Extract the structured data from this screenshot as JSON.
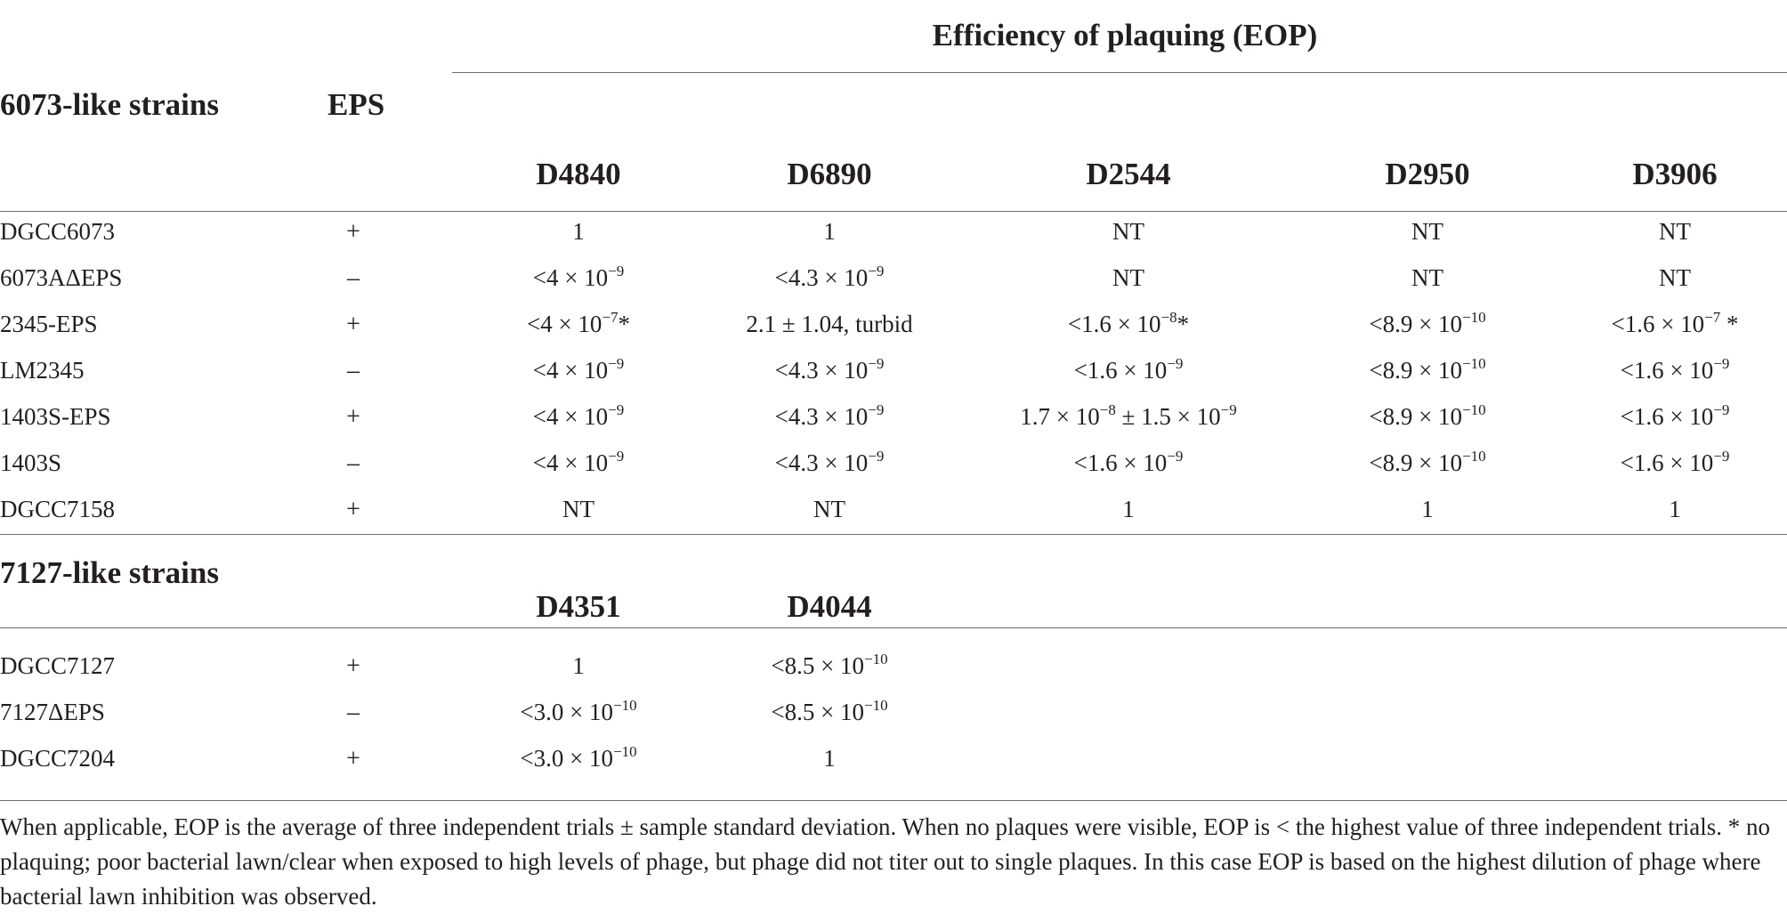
{
  "table": {
    "group_header": "Efficiency of plaquing (EOP)",
    "section_6073": {
      "label": "6073-like strains",
      "eps_header": "EPS",
      "phages": [
        "D4840",
        "D6890",
        "D2544",
        "D2950",
        "D3906"
      ],
      "rows": [
        {
          "strain": "DGCC6073",
          "eps": "+",
          "cells": [
            [
              "1",
              ""
            ],
            [
              "1",
              ""
            ],
            [
              "NT",
              ""
            ],
            [
              "NT",
              ""
            ],
            [
              "NT",
              ""
            ]
          ]
        },
        {
          "strain": "6073AΔEPS",
          "eps": "–",
          "cells": [
            [
              "<4 × 10",
              "−9",
              ""
            ],
            [
              "<4.3 × 10",
              "−9",
              ""
            ],
            [
              "NT",
              ""
            ],
            [
              "NT",
              ""
            ],
            [
              "NT",
              ""
            ]
          ]
        },
        {
          "strain": "2345-EPS",
          "eps": "+",
          "cells": [
            [
              "<4 × 10",
              "−7",
              "*"
            ],
            [
              "2.1 ± 1.04, turbid",
              ""
            ],
            [
              "<1.6 × 10",
              "−8",
              "*"
            ],
            [
              "<8.9 × 10",
              "−10",
              ""
            ],
            [
              "<1.6 × 10",
              "−7",
              " *"
            ]
          ]
        },
        {
          "strain": "LM2345",
          "eps": "–",
          "cells": [
            [
              "<4 × 10",
              "−9",
              ""
            ],
            [
              "<4.3 × 10",
              "−9",
              ""
            ],
            [
              "<1.6 × 10",
              "−9",
              ""
            ],
            [
              "<8.9 × 10",
              "−10",
              ""
            ],
            [
              "<1.6 × 10",
              "−9",
              ""
            ]
          ]
        },
        {
          "strain": "1403S-EPS",
          "eps": "+",
          "cells": [
            [
              "<4 × 10",
              "−9",
              ""
            ],
            [
              "<4.3 × 10",
              "−9",
              ""
            ],
            [
              "1.7 × 10",
              "−8",
              " ± 1.5 × 10",
              "−9"
            ],
            [
              "<8.9 × 10",
              "−10",
              ""
            ],
            [
              "<1.6 × 10",
              "−9",
              ""
            ]
          ]
        },
        {
          "strain": "1403S",
          "eps": "–",
          "cells": [
            [
              "<4 × 10",
              "−9",
              ""
            ],
            [
              "<4.3 × 10",
              "−9",
              ""
            ],
            [
              "<1.6 × 10",
              "−9",
              ""
            ],
            [
              "<8.9 × 10",
              "−10",
              ""
            ],
            [
              "<1.6 × 10",
              "−9",
              ""
            ]
          ]
        },
        {
          "strain": "DGCC7158",
          "eps": "+",
          "cells": [
            [
              "NT",
              ""
            ],
            [
              "NT",
              ""
            ],
            [
              "1",
              ""
            ],
            [
              "1",
              ""
            ],
            [
              "1",
              ""
            ]
          ]
        }
      ]
    },
    "section_7127": {
      "label": "7127-like strains",
      "phages": [
        "D4351",
        "D4044"
      ],
      "rows": [
        {
          "strain": "DGCC7127",
          "eps": "+",
          "cells": [
            [
              "1",
              ""
            ],
            [
              "<8.5 × 10",
              "−10",
              ""
            ]
          ]
        },
        {
          "strain": "7127ΔEPS",
          "eps": "–",
          "cells": [
            [
              "<3.0 × 10",
              "−10",
              ""
            ],
            [
              "<8.5 × 10",
              "−10",
              ""
            ]
          ]
        },
        {
          "strain": "DGCC7204",
          "eps": "+",
          "cells": [
            [
              "<3.0 × 10",
              "−10",
              ""
            ],
            [
              "1",
              ""
            ]
          ]
        }
      ]
    },
    "footnote": "When applicable, EOP is the average of three independent trials ± sample standard deviation. When no plaques were visible, EOP is < the highest value of three independent trials. * no plaquing; poor bacterial lawn/clear when exposed to high levels of phage, but phage did not titer out to single plaques. In this case EOP is based on the highest dilution of phage where bacterial lawn inhibition was observed."
  }
}
